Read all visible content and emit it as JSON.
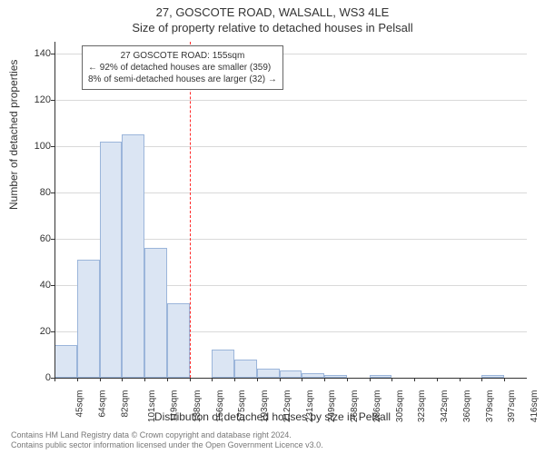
{
  "supertitle": "27, GOSCOTE ROAD, WALSALL, WS3 4LE",
  "title": "Size of property relative to detached houses in Pelsall",
  "ylabel": "Number of detached properties",
  "xlabel": "Distribution of detached houses by size in Pelsall",
  "chart": {
    "type": "histogram",
    "background_color": "#ffffff",
    "grid_color": "#d9d9d9",
    "axis_color": "#333333",
    "bar_color": "#dbe5f3",
    "bar_border_color": "#9bb5da",
    "bar_width_ratio": 1.0,
    "ylim": [
      0,
      145
    ],
    "yticks": [
      0,
      20,
      40,
      60,
      80,
      100,
      120,
      140
    ],
    "grid_y": [
      20,
      40,
      60,
      80,
      100,
      120,
      140
    ],
    "xtick_labels": [
      "45sqm",
      "64sqm",
      "82sqm",
      "101sqm",
      "119sqm",
      "138sqm",
      "156sqm",
      "175sqm",
      "193sqm",
      "212sqm",
      "231sqm",
      "249sqm",
      "268sqm",
      "286sqm",
      "305sqm",
      "323sqm",
      "342sqm",
      "360sqm",
      "379sqm",
      "397sqm",
      "416sqm"
    ],
    "values": [
      14,
      51,
      102,
      105,
      56,
      32,
      0,
      12,
      8,
      4,
      3,
      2,
      1,
      0,
      1,
      0,
      0,
      0,
      0,
      1,
      0
    ],
    "refline": {
      "index": 6,
      "color": "#ff2a2a"
    },
    "annotation": {
      "lines": [
        "27 GOSCOTE ROAD: 155sqm",
        "← 92% of detached houses are smaller (359)",
        "8% of semi-detached houses are larger (32) →"
      ],
      "border_color": "#666666"
    },
    "label_fontsize": 12,
    "tick_fontsize": 10
  },
  "footer": {
    "line1": "Contains HM Land Registry data © Crown copyright and database right 2024.",
    "line2": "Contains public sector information licensed under the Open Government Licence v3.0."
  }
}
